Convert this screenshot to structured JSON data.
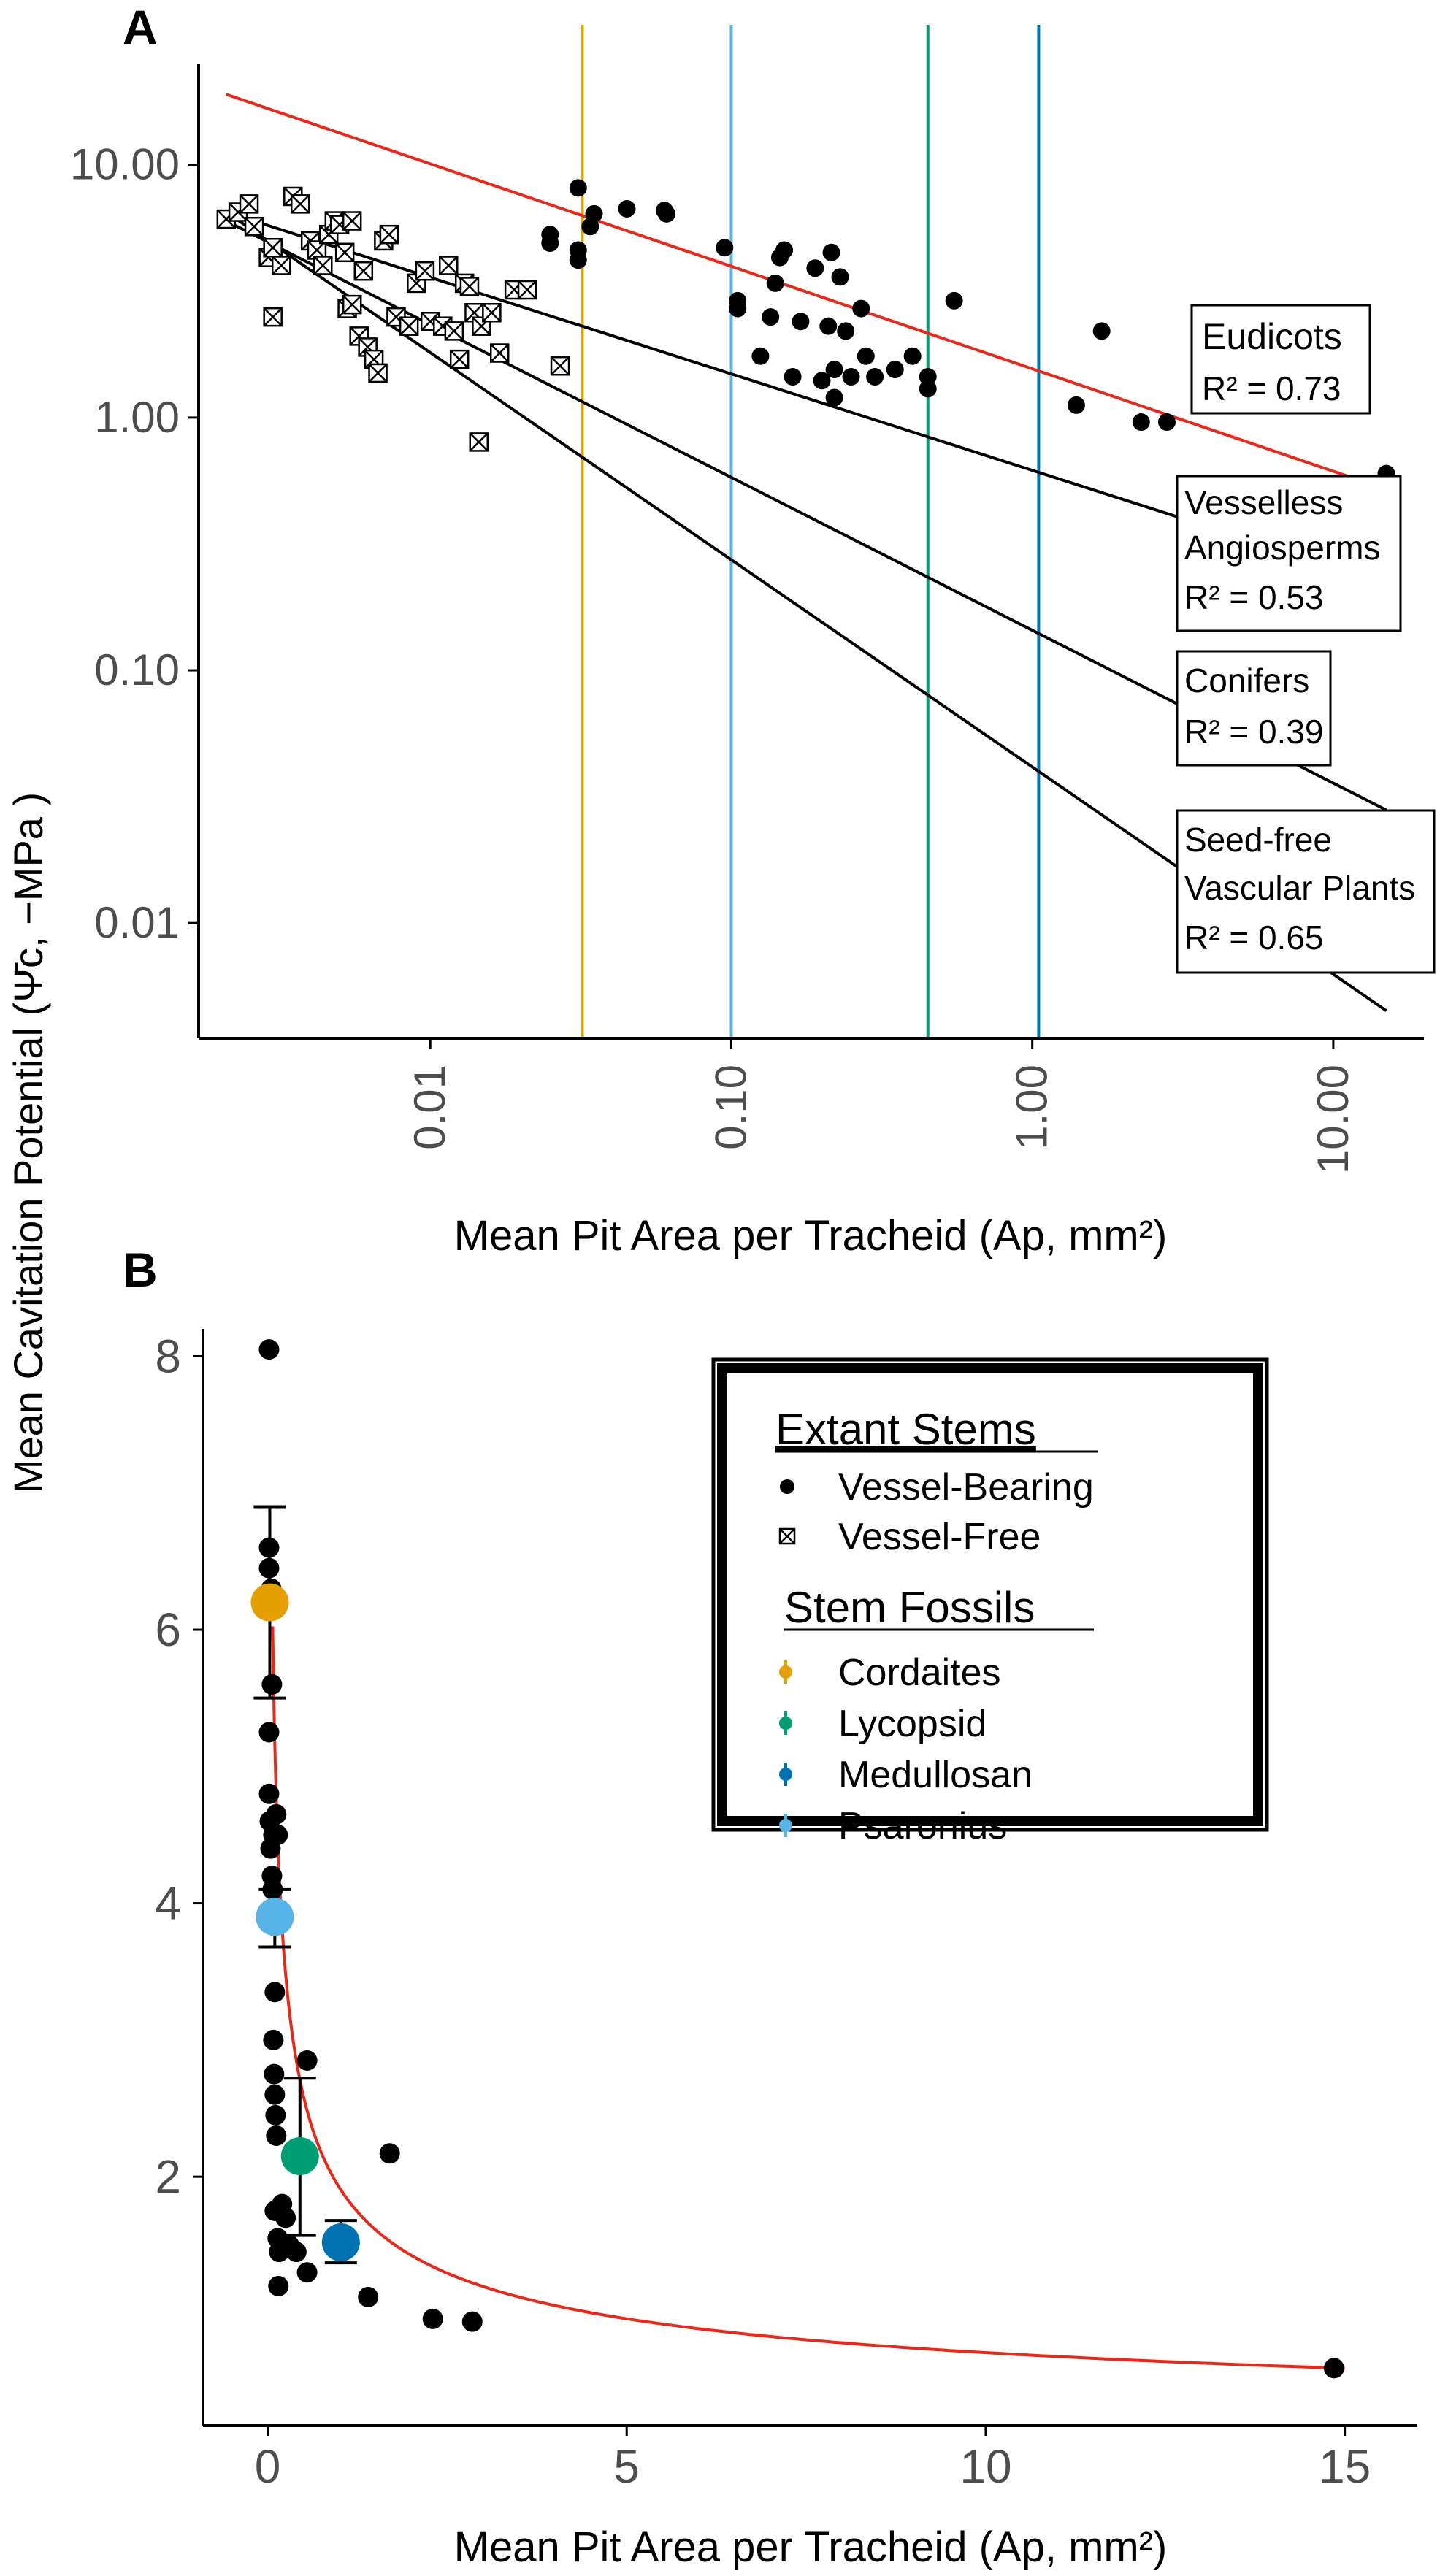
{
  "figure": {
    "panel_a_label": "A",
    "panel_b_label": "B",
    "y_axis_title": "Mean Cavitation Potential (Ψ̄c, −MPa )"
  },
  "chart_data": [
    {
      "panel": "A",
      "type": "scatter",
      "x_scale": "log10",
      "y_scale": "log10",
      "xlabel": "Mean Pit Area per Tracheid (Ap, mm²)",
      "ylabel": "Mean Cavitation Potential (Ψ̄c, −MPa )",
      "xlim": [
        0.0017,
        20
      ],
      "ylim": [
        0.0035,
        25
      ],
      "x_ticks": [
        0.01,
        0.1,
        1,
        10
      ],
      "x_tick_labels": [
        "0.01",
        "0.10",
        "1.00",
        "10.00"
      ],
      "y_ticks": [
        0.01,
        0.1,
        1,
        10
      ],
      "y_tick_labels": [
        "0.01",
        "0.10",
        "1.00",
        "10.00"
      ],
      "grid": false,
      "vertical_lines": [
        {
          "name": "Cordaites",
          "x": 0.032,
          "color": "#E69F00"
        },
        {
          "name": "Psaronius",
          "x": 0.1,
          "color": "#56B4E9"
        },
        {
          "name": "Lycopsid",
          "x": 0.45,
          "color": "#009E73"
        },
        {
          "name": "Medullosan",
          "x": 1.05,
          "color": "#0072B2"
        }
      ],
      "regression_lines": [
        {
          "name": "Eudicots",
          "r2_label": "R² = 0.73",
          "from": [
            0.0021,
            19.0
          ],
          "to": [
            15.0,
            0.52
          ],
          "color": "#e8281a"
        },
        {
          "name": "Vesseless Angiosperms",
          "r2_label": "R² = 0.53",
          "from": [
            0.0021,
            6.5
          ],
          "to": [
            15.0,
            0.22
          ],
          "color": "#000000"
        },
        {
          "name": "Conifers",
          "r2_label": "R² = 0.39",
          "from": [
            0.0021,
            6.0
          ],
          "to": [
            15.0,
            0.028
          ],
          "color": "#000000"
        },
        {
          "name": "Seed-free Vascular Plants",
          "r2_label": "R² = 0.65",
          "from": [
            0.0021,
            6.5
          ],
          "to": [
            15.0,
            0.0045
          ],
          "color": "#000000"
        }
      ],
      "annotations": [
        {
          "label_lines": [
            "Eudicots"
          ],
          "r2": "R² = 0.73"
        },
        {
          "label_lines": [
            "Vesselless",
            "Angiosperms"
          ],
          "r2": "R² = 0.53"
        },
        {
          "label_lines": [
            "Conifers"
          ],
          "r2": "R² = 0.39"
        },
        {
          "label_lines": [
            "Seed-free",
            "Vascular Plants"
          ],
          "r2": "R² = 0.65"
        }
      ],
      "series": [
        {
          "name": "Vessel-Bearing",
          "marker": "filled-circle",
          "points": [
            [
              0.025,
              5.3
            ],
            [
              0.025,
              4.9
            ],
            [
              0.031,
              8.1
            ],
            [
              0.031,
              4.6
            ],
            [
              0.031,
              4.2
            ],
            [
              0.034,
              5.7
            ],
            [
              0.035,
              6.4
            ],
            [
              0.045,
              6.7
            ],
            [
              0.06,
              6.6
            ],
            [
              0.061,
              6.4
            ],
            [
              0.095,
              4.7
            ],
            [
              0.105,
              2.9
            ],
            [
              0.105,
              2.7
            ],
            [
              0.125,
              1.75
            ],
            [
              0.135,
              2.5
            ],
            [
              0.14,
              3.4
            ],
            [
              0.145,
              4.3
            ],
            [
              0.15,
              4.6
            ],
            [
              0.16,
              1.45
            ],
            [
              0.17,
              2.4
            ],
            [
              0.19,
              3.9
            ],
            [
              0.2,
              1.4
            ],
            [
              0.21,
              2.3
            ],
            [
              0.215,
              4.5
            ],
            [
              0.22,
              1.55
            ],
            [
              0.22,
              1.2
            ],
            [
              0.23,
              3.6
            ],
            [
              0.24,
              2.2
            ],
            [
              0.25,
              1.45
            ],
            [
              0.27,
              2.7
            ],
            [
              0.28,
              1.75
            ],
            [
              0.3,
              1.45
            ],
            [
              0.35,
              1.55
            ],
            [
              0.4,
              1.75
            ],
            [
              0.45,
              1.3
            ],
            [
              0.45,
              1.45
            ],
            [
              0.55,
              2.9
            ],
            [
              1.4,
              1.12
            ],
            [
              1.7,
              2.2
            ],
            [
              2.3,
              0.96
            ],
            [
              2.8,
              0.96
            ],
            [
              15.0,
              0.6
            ]
          ]
        },
        {
          "name": "Vessel-Free",
          "marker": "crossed-square",
          "points": [
            [
              0.0021,
              6.1
            ],
            [
              0.0023,
              6.5
            ],
            [
              0.0025,
              7.0
            ],
            [
              0.0026,
              5.7
            ],
            [
              0.0029,
              4.3
            ],
            [
              0.003,
              4.7
            ],
            [
              0.003,
              2.5
            ],
            [
              0.0032,
              4.0
            ],
            [
              0.0035,
              7.5
            ],
            [
              0.0037,
              7.0
            ],
            [
              0.004,
              5.0
            ],
            [
              0.0042,
              4.6
            ],
            [
              0.0044,
              4.0
            ],
            [
              0.0046,
              5.3
            ],
            [
              0.0048,
              6.0
            ],
            [
              0.005,
              5.8
            ],
            [
              0.0052,
              4.5
            ],
            [
              0.0053,
              2.7
            ],
            [
              0.0055,
              6.0
            ],
            [
              0.0055,
              2.8
            ],
            [
              0.0058,
              2.1
            ],
            [
              0.006,
              3.8
            ],
            [
              0.0062,
              1.9
            ],
            [
              0.0065,
              1.7
            ],
            [
              0.0067,
              1.5
            ],
            [
              0.007,
              5.0
            ],
            [
              0.0073,
              5.3
            ],
            [
              0.0077,
              2.5
            ],
            [
              0.0085,
              2.3
            ],
            [
              0.009,
              3.4
            ],
            [
              0.0096,
              3.8
            ],
            [
              0.01,
              2.4
            ],
            [
              0.011,
              2.3
            ],
            [
              0.0115,
              4.0
            ],
            [
              0.012,
              2.2
            ],
            [
              0.0125,
              1.7
            ],
            [
              0.013,
              3.4
            ],
            [
              0.0135,
              3.3
            ],
            [
              0.014,
              2.6
            ],
            [
              0.0148,
              2.3
            ],
            [
              0.0145,
              0.8
            ],
            [
              0.016,
              2.6
            ],
            [
              0.017,
              1.8
            ],
            [
              0.019,
              3.2
            ],
            [
              0.021,
              3.2
            ],
            [
              0.027,
              1.6
            ]
          ]
        }
      ]
    },
    {
      "panel": "B",
      "type": "scatter",
      "xlabel": "Mean Pit Area per Tracheid (Ap, mm²)",
      "ylabel": "Mean Cavitation Potential (Ψ̄c, −MPa )",
      "xlim": [
        -0.9,
        16
      ],
      "ylim": [
        0.18,
        8.2
      ],
      "x_ticks": [
        0,
        5,
        10,
        15
      ],
      "x_tick_labels": [
        "0",
        "5",
        "10",
        "15"
      ],
      "y_ticks": [
        2,
        4,
        6,
        8
      ],
      "y_tick_labels": [
        "2",
        "4",
        "6",
        "8"
      ],
      "grid": false,
      "fit_curve": {
        "name": "Power-law fit",
        "model": "y = a * x^b",
        "a": 1.92,
        "b": -0.43,
        "x_range": [
          0.07,
          15.0
        ],
        "color": "#e8281a"
      },
      "series": [
        {
          "name": "Vessel-Bearing",
          "marker": "filled-circle",
          "points": [
            [
              0.02,
              8.05
            ],
            [
              0.02,
              6.6
            ],
            [
              0.02,
              6.45
            ],
            [
              0.05,
              6.3
            ],
            [
              0.06,
              5.6
            ],
            [
              0.02,
              5.25
            ],
            [
              0.02,
              4.8
            ],
            [
              0.03,
              4.6
            ],
            [
              0.04,
              4.4
            ],
            [
              0.06,
              4.2
            ],
            [
              0.07,
              4.1
            ],
            [
              0.08,
              4.5
            ],
            [
              0.12,
              4.65
            ],
            [
              0.14,
              4.5
            ],
            [
              0.1,
              3.35
            ],
            [
              0.08,
              3.0
            ],
            [
              0.09,
              2.75
            ],
            [
              0.1,
              2.6
            ],
            [
              0.11,
              2.45
            ],
            [
              0.12,
              2.3
            ],
            [
              0.1,
              1.75
            ],
            [
              0.14,
              1.55
            ],
            [
              0.15,
              1.2
            ],
            [
              0.16,
              1.45
            ],
            [
              0.2,
              1.8
            ],
            [
              0.23,
              1.5
            ],
            [
              0.25,
              1.7
            ],
            [
              0.3,
              1.5
            ],
            [
              0.4,
              1.45
            ],
            [
              0.55,
              1.3
            ],
            [
              0.55,
              2.85
            ],
            [
              1.4,
              1.12
            ],
            [
              1.7,
              2.17
            ],
            [
              2.3,
              0.96
            ],
            [
              2.85,
              0.94
            ],
            [
              14.85,
              0.6
            ]
          ]
        }
      ],
      "fossil_points": [
        {
          "name": "Cordaites",
          "x": 0.03,
          "y": 6.2,
          "y_err": [
            5.5,
            6.9
          ],
          "color": "#E69F00"
        },
        {
          "name": "Psaronius",
          "x": 0.1,
          "y": 3.9,
          "y_err": [
            3.68,
            4.1
          ],
          "color": "#56B4E9"
        },
        {
          "name": "Lycopsid",
          "x": 0.45,
          "y": 2.15,
          "y_err": [
            1.57,
            2.72
          ],
          "color": "#009E73"
        },
        {
          "name": "Medullosan",
          "x": 1.02,
          "y": 1.52,
          "y_err": [
            1.37,
            1.68
          ],
          "color": "#0072B2"
        }
      ],
      "legend": {
        "placement": "top-right",
        "groups": [
          {
            "title": "Extant Stems",
            "entries": [
              {
                "label": "Vessel-Bearing",
                "marker": "filled-circle",
                "color": "#000000"
              },
              {
                "label": "Vessel-Free",
                "marker": "crossed-square",
                "color": "#000000"
              }
            ]
          },
          {
            "title": "Stem Fossils",
            "entries": [
              {
                "label": "Cordaites",
                "marker": "point-errorbar",
                "color": "#E69F00"
              },
              {
                "label": "Lycopsid",
                "marker": "point-errorbar",
                "color": "#009E73"
              },
              {
                "label": "Medullosan",
                "marker": "point-errorbar",
                "color": "#0072B2"
              },
              {
                "label": "Psaronius",
                "marker": "point-errorbar",
                "color": "#56B4E9"
              }
            ]
          }
        ]
      }
    }
  ]
}
